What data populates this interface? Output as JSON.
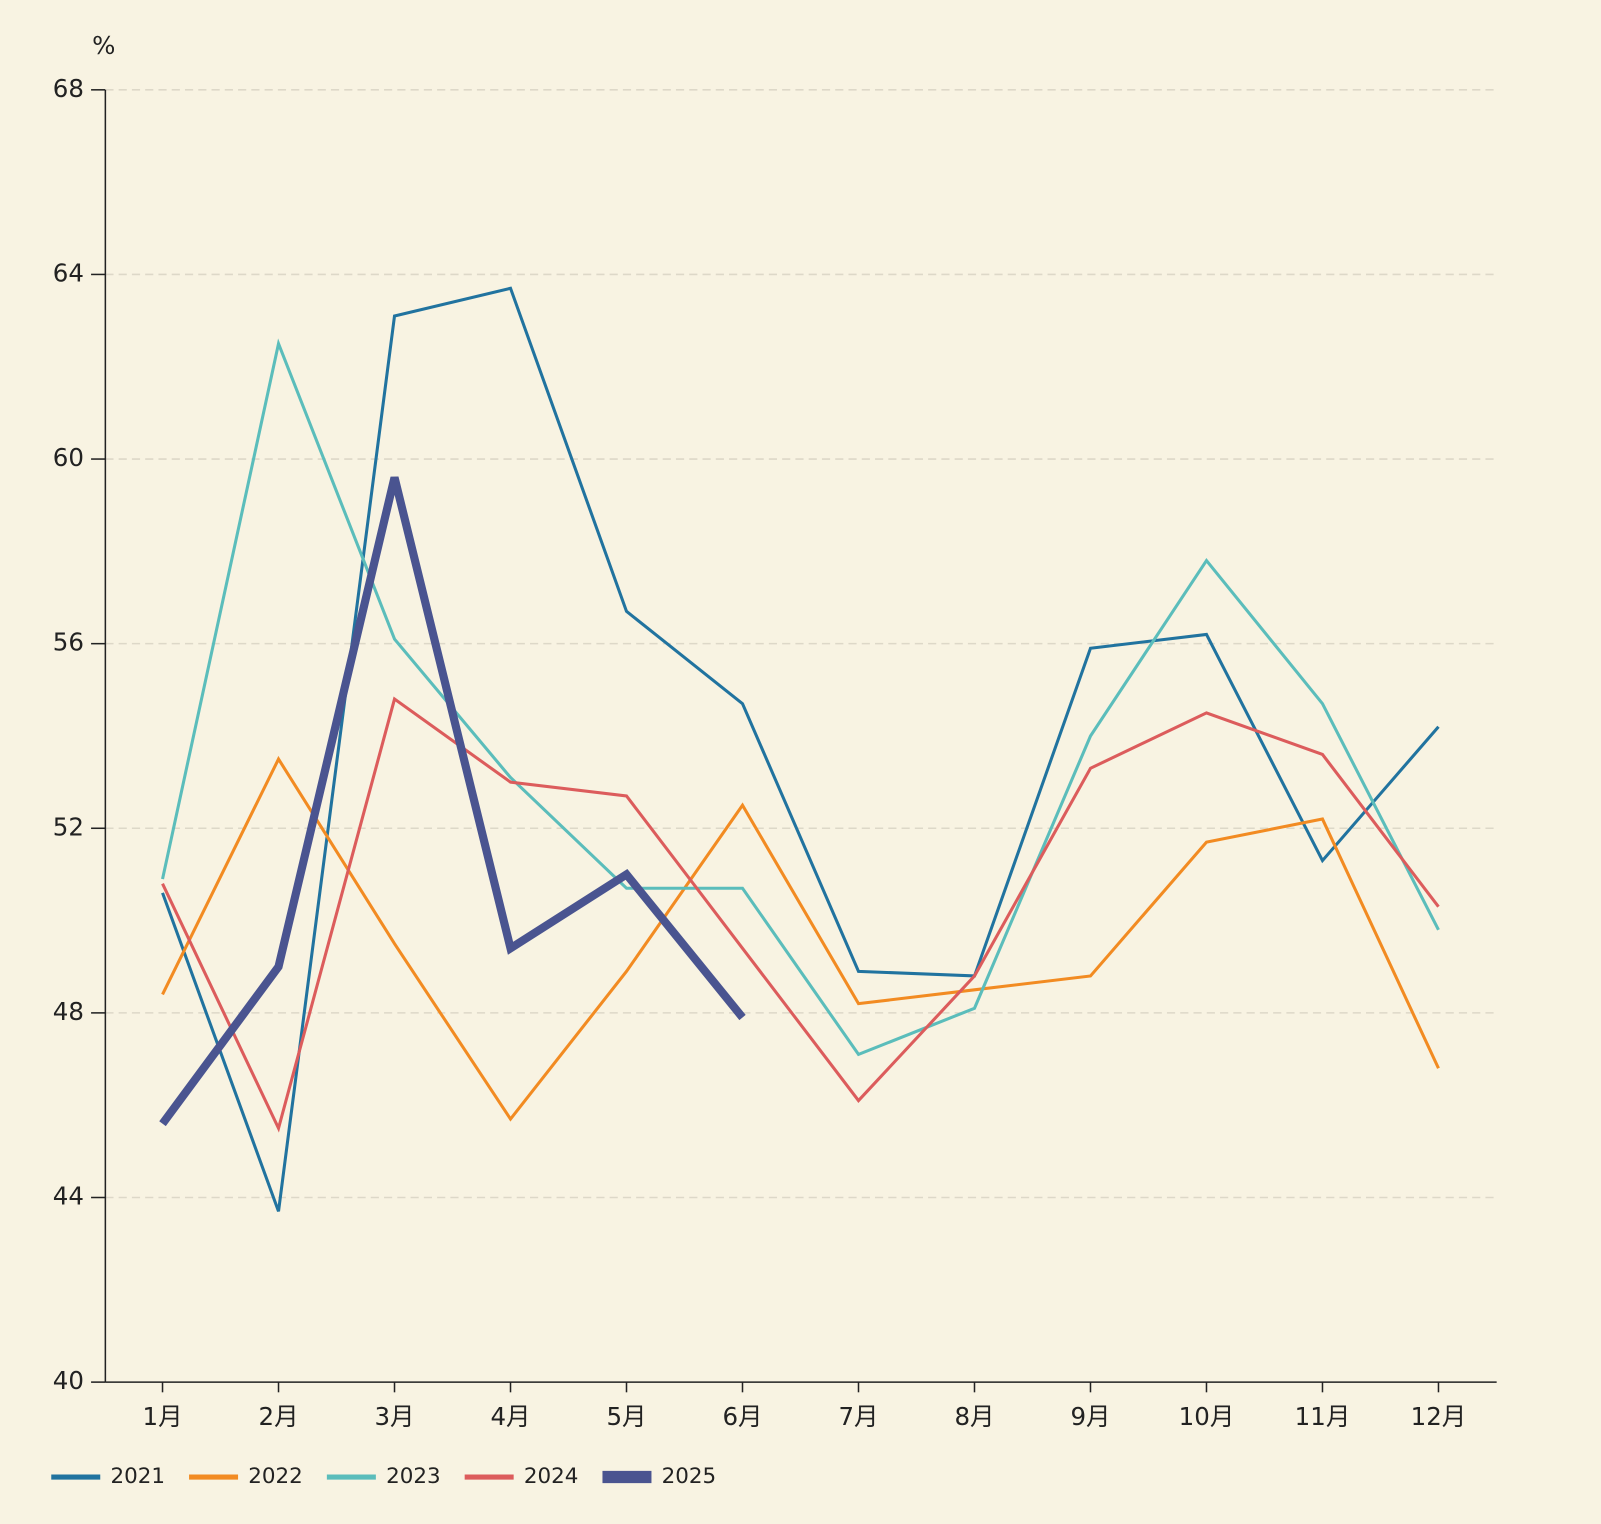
{
  "chart_data": {
    "type": "line",
    "y_unit": "%",
    "categories": [
      "1月",
      "2月",
      "3月",
      "4月",
      "5月",
      "6月",
      "7月",
      "8月",
      "9月",
      "10月",
      "11月",
      "12月"
    ],
    "series": [
      {
        "name": "2021",
        "color": "#21739f",
        "width": 3,
        "values": [
          50.6,
          43.7,
          63.1,
          63.7,
          56.7,
          54.7,
          48.9,
          48.8,
          55.9,
          56.2,
          51.3,
          54.2
        ]
      },
      {
        "name": "2022",
        "color": "#f28b22",
        "width": 3,
        "values": [
          48.4,
          53.5,
          49.5,
          45.7,
          48.9,
          52.5,
          48.2,
          48.5,
          48.8,
          51.7,
          52.2,
          46.8
        ]
      },
      {
        "name": "2023",
        "color": "#5bbdbb",
        "width": 3,
        "values": [
          50.9,
          62.5,
          56.1,
          53.1,
          50.7,
          50.7,
          47.1,
          48.1,
          54.0,
          57.8,
          54.7,
          49.8
        ]
      },
      {
        "name": "2024",
        "color": "#dc5c5c",
        "width": 3,
        "values": [
          50.8,
          45.5,
          54.8,
          53.0,
          52.7,
          49.4,
          46.1,
          48.8,
          53.3,
          54.5,
          53.6,
          50.3
        ]
      },
      {
        "name": "2025",
        "color": "#4a5490",
        "width": 8,
        "values": [
          45.6,
          49.0,
          59.6,
          49.4,
          51.0,
          47.9,
          null,
          null,
          null,
          null,
          null,
          null
        ]
      }
    ],
    "ylim": [
      40,
      68
    ],
    "yticks": [
      40,
      44,
      48,
      52,
      56,
      60,
      64,
      68
    ],
    "grid": true,
    "legend": "bottom-left"
  }
}
